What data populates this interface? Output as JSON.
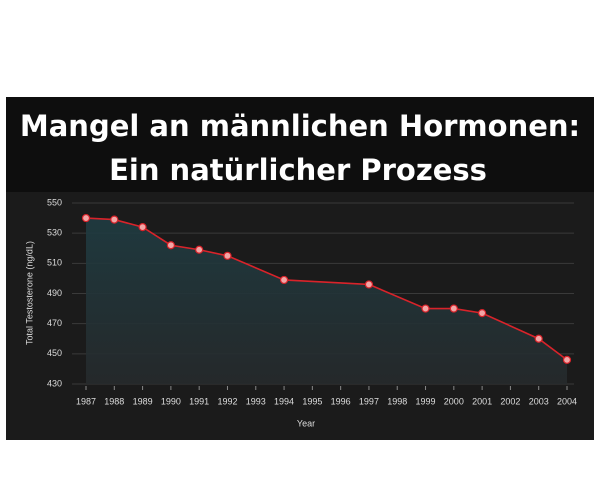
{
  "chart_data": {
    "type": "line",
    "title": [
      "Mangel an männlichen Hormonen:",
      "Ein natürlicher Prozess"
    ],
    "x_label": "Year",
    "y_label": "Total Testosterone (ng/dL)",
    "xticks": [
      1987,
      1988,
      1989,
      1990,
      1991,
      1992,
      1993,
      1994,
      1995,
      1996,
      1997,
      1998,
      1999,
      2000,
      2001,
      2002,
      2003,
      2004
    ],
    "xlim": [
      1987,
      2004
    ],
    "ylim": [
      430,
      550
    ],
    "yticks": [
      430,
      450,
      470,
      490,
      510,
      530,
      550
    ],
    "grid": true,
    "series": [
      {
        "color": "#d9232a",
        "x": [
          1987,
          1988,
          1989,
          1990,
          1991,
          1992,
          1994,
          1997,
          1999,
          2000,
          2001,
          2003,
          2004
        ],
        "values": [
          540,
          539,
          534,
          522,
          519,
          515,
          499,
          496,
          480,
          480,
          477,
          460,
          446
        ]
      }
    ]
  }
}
